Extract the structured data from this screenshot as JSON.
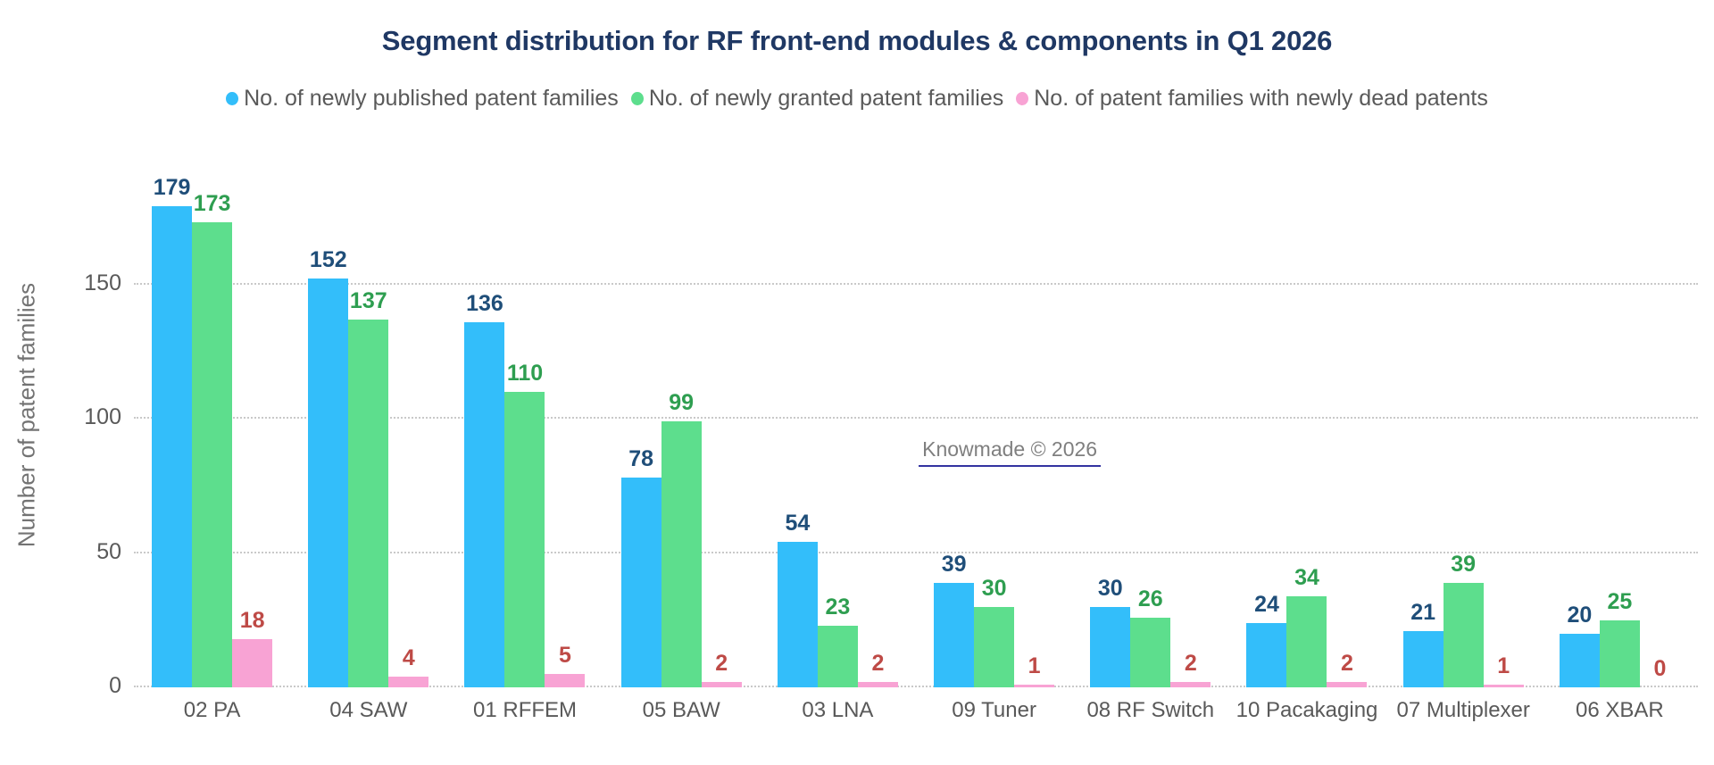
{
  "title": "Segment distribution for RF front-end modules & components in Q1 2026",
  "chart_data": {
    "type": "bar",
    "title": "Segment distribution for RF front-end modules & components in Q1 2026",
    "xlabel": "",
    "ylabel": "Number of patent families",
    "ylim": [
      0,
      200
    ],
    "yticks": [
      0,
      50,
      100,
      150
    ],
    "grid": "horizontal dotted",
    "legend_position": "top",
    "categories": [
      "02 PA",
      "04 SAW",
      "01 RFFEM",
      "05 BAW",
      "03 LNA",
      "09 Tuner",
      "08 RF Switch",
      "10 Pacakaging",
      "07 Multiplexer",
      "06 XBAR"
    ],
    "series": [
      {
        "name": "No. of newly published patent families",
        "color": "#33BEFA",
        "label_color": "#1F4E79",
        "values": [
          179,
          152,
          136,
          78,
          54,
          39,
          30,
          24,
          21,
          20
        ]
      },
      {
        "name": "No. of newly granted patent families",
        "color": "#5DDE8D",
        "label_color": "#2E9E50",
        "values": [
          173,
          137,
          110,
          99,
          23,
          30,
          26,
          34,
          39,
          25
        ]
      },
      {
        "name": "No. of patent families with newly dead patents",
        "color": "#F8A3D4",
        "label_color": "#BE4A46",
        "values": [
          18,
          4,
          5,
          2,
          2,
          1,
          2,
          2,
          1,
          0
        ]
      }
    ],
    "annotation": {
      "text": "Knowmade © 2026"
    }
  },
  "colors": {
    "title": "#1F3864",
    "legend_text": "#595959",
    "axis_text": "#595959",
    "y_title_text": "#737373",
    "gridline": "#C9C9C9",
    "watermark_text": "#7F7F7F",
    "watermark_underline": "#3333A0",
    "background": "#FFFFFF"
  }
}
